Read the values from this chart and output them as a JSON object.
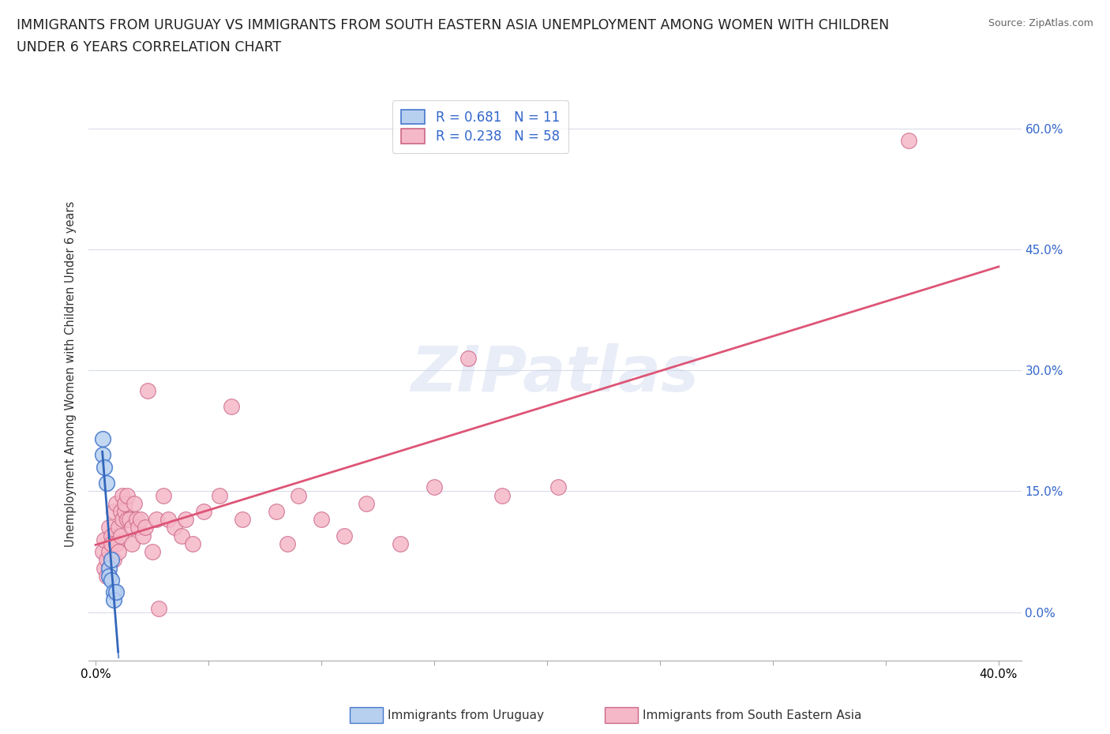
{
  "title_line1": "IMMIGRANTS FROM URUGUAY VS IMMIGRANTS FROM SOUTH EASTERN ASIA UNEMPLOYMENT AMONG WOMEN WITH CHILDREN",
  "title_line2": "UNDER 6 YEARS CORRELATION CHART",
  "source": "Source: ZipAtlas.com",
  "ylabel": "Unemployment Among Women with Children Under 6 years",
  "ytick_labels": [
    "0.0%",
    "15.0%",
    "30.0%",
    "45.0%",
    "60.0%"
  ],
  "ytick_values": [
    0.0,
    0.15,
    0.3,
    0.45,
    0.6
  ],
  "xtick_values": [
    0.0,
    0.05,
    0.1,
    0.15,
    0.2,
    0.25,
    0.3,
    0.35,
    0.4
  ],
  "xlim": [
    -0.003,
    0.41
  ],
  "ylim": [
    -0.06,
    0.65
  ],
  "watermark": "ZIPatlas",
  "legend_uru_R": 0.681,
  "legend_uru_N": 11,
  "legend_sea_R": 0.238,
  "legend_sea_N": 58,
  "uru_color": "#b8d0f0",
  "uru_edge": "#4477cc",
  "uru_line": "#3366bb",
  "sea_color": "#f5b8c8",
  "sea_edge": "#cc6688",
  "sea_line": "#dd5577",
  "uruguay_points": [
    [
      0.003,
      0.215
    ],
    [
      0.003,
      0.195
    ],
    [
      0.004,
      0.18
    ],
    [
      0.005,
      0.16
    ],
    [
      0.006,
      0.055
    ],
    [
      0.006,
      0.045
    ],
    [
      0.007,
      0.065
    ],
    [
      0.007,
      0.04
    ],
    [
      0.008,
      0.025
    ],
    [
      0.008,
      0.015
    ],
    [
      0.009,
      0.025
    ]
  ],
  "sea_points": [
    [
      0.003,
      0.075
    ],
    [
      0.004,
      0.09
    ],
    [
      0.004,
      0.055
    ],
    [
      0.005,
      0.065
    ],
    [
      0.005,
      0.045
    ],
    [
      0.006,
      0.105
    ],
    [
      0.006,
      0.075
    ],
    [
      0.007,
      0.095
    ],
    [
      0.007,
      0.085
    ],
    [
      0.008,
      0.125
    ],
    [
      0.008,
      0.065
    ],
    [
      0.009,
      0.135
    ],
    [
      0.009,
      0.085
    ],
    [
      0.01,
      0.105
    ],
    [
      0.01,
      0.075
    ],
    [
      0.011,
      0.125
    ],
    [
      0.011,
      0.095
    ],
    [
      0.012,
      0.115
    ],
    [
      0.012,
      0.145
    ],
    [
      0.013,
      0.125
    ],
    [
      0.013,
      0.135
    ],
    [
      0.014,
      0.115
    ],
    [
      0.014,
      0.145
    ],
    [
      0.015,
      0.115
    ],
    [
      0.016,
      0.105
    ],
    [
      0.016,
      0.085
    ],
    [
      0.017,
      0.135
    ],
    [
      0.018,
      0.115
    ],
    [
      0.019,
      0.105
    ],
    [
      0.02,
      0.115
    ],
    [
      0.021,
      0.095
    ],
    [
      0.022,
      0.105
    ],
    [
      0.023,
      0.275
    ],
    [
      0.025,
      0.075
    ],
    [
      0.027,
      0.115
    ],
    [
      0.028,
      0.005
    ],
    [
      0.03,
      0.145
    ],
    [
      0.032,
      0.115
    ],
    [
      0.035,
      0.105
    ],
    [
      0.038,
      0.095
    ],
    [
      0.04,
      0.115
    ],
    [
      0.043,
      0.085
    ],
    [
      0.048,
      0.125
    ],
    [
      0.055,
      0.145
    ],
    [
      0.06,
      0.255
    ],
    [
      0.065,
      0.115
    ],
    [
      0.08,
      0.125
    ],
    [
      0.085,
      0.085
    ],
    [
      0.09,
      0.145
    ],
    [
      0.1,
      0.115
    ],
    [
      0.11,
      0.095
    ],
    [
      0.12,
      0.135
    ],
    [
      0.135,
      0.085
    ],
    [
      0.15,
      0.155
    ],
    [
      0.165,
      0.315
    ],
    [
      0.18,
      0.145
    ],
    [
      0.205,
      0.155
    ],
    [
      0.36,
      0.585
    ]
  ],
  "background_color": "#ffffff",
  "grid_color": "#d8dce8",
  "title_fontsize": 12.5,
  "axis_label_fontsize": 10.5,
  "tick_fontsize": 11,
  "legend_fontsize": 12
}
